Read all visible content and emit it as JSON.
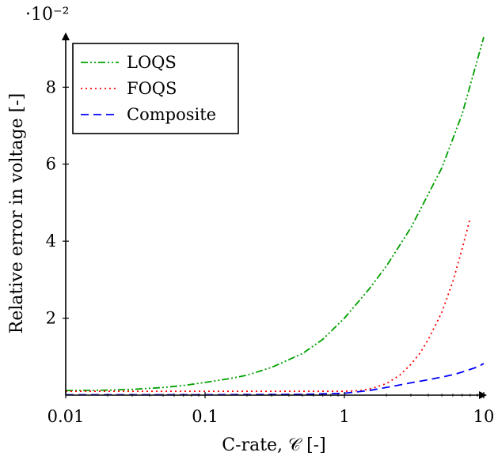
{
  "chart_data": {
    "type": "line",
    "xlabel": "C-rate, 𝒞 [-]",
    "ylabel": "Relative error in voltage [-]",
    "y_multiplier_label": "·10⁻²",
    "xscale": "log",
    "xlim": [
      0.01,
      10
    ],
    "ylim": [
      0,
      9.3
    ],
    "xticks": [
      0.01,
      0.1,
      1,
      10
    ],
    "xtick_labels": [
      "0.01",
      "0.1",
      "1",
      "10"
    ],
    "yticks": [
      2,
      4,
      6,
      8
    ],
    "ytick_labels": [
      "2",
      "4",
      "6",
      "8"
    ],
    "grid": false,
    "legend_position": "top-left",
    "series": [
      {
        "name": "LOQS",
        "color": "#00a000",
        "dash": "dash-dot-dot",
        "x": [
          0.01,
          0.02,
          0.03,
          0.05,
          0.07,
          0.1,
          0.15,
          0.2,
          0.3,
          0.5,
          0.7,
          1,
          1.5,
          2,
          3,
          5,
          7,
          10
        ],
        "y": [
          0.12,
          0.13,
          0.15,
          0.2,
          0.25,
          0.33,
          0.43,
          0.52,
          0.72,
          1.08,
          1.45,
          2.0,
          2.75,
          3.35,
          4.35,
          5.9,
          7.3,
          9.3
        ]
      },
      {
        "name": "FOQS",
        "color": "#ff0000",
        "dash": "dotted",
        "x": [
          0.01,
          0.03,
          0.1,
          0.3,
          0.5,
          1,
          1.3,
          1.6,
          2,
          2.5,
          3,
          3.5,
          4,
          5,
          6,
          7,
          8
        ],
        "y": [
          0.1,
          0.1,
          0.1,
          0.1,
          0.1,
          0.1,
          0.12,
          0.18,
          0.3,
          0.52,
          0.8,
          1.1,
          1.45,
          2.15,
          2.95,
          3.8,
          4.6
        ]
      },
      {
        "name": "Composite",
        "color": "#0000ff",
        "dash": "dashed",
        "x": [
          0.01,
          0.1,
          0.5,
          1,
          1.5,
          2,
          3,
          4,
          5,
          6,
          7,
          8,
          9,
          10
        ],
        "y": [
          0.01,
          0.01,
          0.02,
          0.05,
          0.12,
          0.2,
          0.32,
          0.4,
          0.47,
          0.53,
          0.6,
          0.67,
          0.73,
          0.82
        ]
      }
    ]
  }
}
